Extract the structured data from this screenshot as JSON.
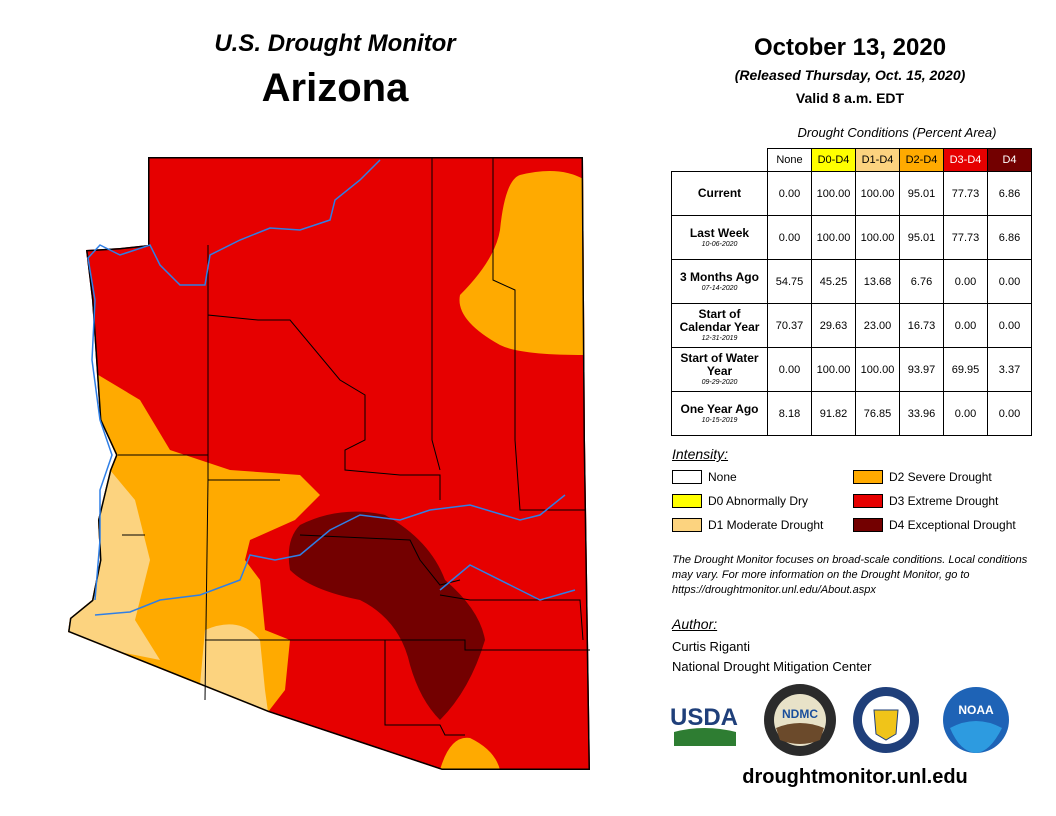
{
  "header": {
    "program": "U.S. Drought Monitor",
    "state": "Arizona",
    "date": "October 13, 2020",
    "released": "(Released Thursday, Oct. 15, 2020)",
    "valid": "Valid 8 a.m. EDT"
  },
  "table": {
    "caption": "Drought Conditions (Percent Area)",
    "columns": [
      {
        "label": "None",
        "color": "#ffffff",
        "text_color": "#000000"
      },
      {
        "label": "D0-D4",
        "color": "#ffff00",
        "text_color": "#000000"
      },
      {
        "label": "D1-D4",
        "color": "#fcd37f",
        "text_color": "#000000"
      },
      {
        "label": "D2-D4",
        "color": "#ffaa00",
        "text_color": "#000000"
      },
      {
        "label": "D3-D4",
        "color": "#e60000",
        "text_color": "#ffffff"
      },
      {
        "label": "D4",
        "color": "#730000",
        "text_color": "#ffffff"
      }
    ],
    "rows": [
      {
        "label": "Current",
        "values": [
          "0.00",
          "100.00",
          "100.00",
          "95.01",
          "77.73",
          "6.86"
        ]
      },
      {
        "label": "Last Week",
        "date": "10-06-2020",
        "values": [
          "0.00",
          "100.00",
          "100.00",
          "95.01",
          "77.73",
          "6.86"
        ]
      },
      {
        "label": "3 Months Ago",
        "date": "07-14-2020",
        "values": [
          "54.75",
          "45.25",
          "13.68",
          "6.76",
          "0.00",
          "0.00"
        ]
      },
      {
        "label": "Start of Calendar Year",
        "date": "12-31-2019",
        "values": [
          "70.37",
          "29.63",
          "23.00",
          "16.73",
          "0.00",
          "0.00"
        ]
      },
      {
        "label": "Start of Water Year",
        "date": "09-29-2020",
        "values": [
          "0.00",
          "100.00",
          "100.00",
          "93.97",
          "69.95",
          "3.37"
        ]
      },
      {
        "label": "One Year Ago",
        "date": "10-15-2019",
        "values": [
          "8.18",
          "91.82",
          "76.85",
          "33.96",
          "0.00",
          "0.00"
        ]
      }
    ]
  },
  "legend": {
    "title": "Intensity:",
    "items": [
      {
        "label": "None",
        "color": "#ffffff"
      },
      {
        "label": "D0 Abnormally Dry",
        "color": "#ffff00"
      },
      {
        "label": "D1 Moderate Drought",
        "color": "#fcd37f"
      },
      {
        "label": "D2 Severe Drought",
        "color": "#ffaa00"
      },
      {
        "label": "D3 Extreme Drought",
        "color": "#e60000"
      },
      {
        "label": "D4 Exceptional Drought",
        "color": "#730000"
      }
    ]
  },
  "note": "The Drought Monitor focuses on broad-scale conditions. Local conditions may vary. For more information on the Drought Monitor, go to https://droughtmonitor.unl.edu/About.aspx",
  "author": {
    "title": "Author:",
    "name": "Curtis Riganti",
    "org": "National Drought Mitigation Center"
  },
  "logos": [
    "USDA",
    "NDMC",
    "NOAA"
  ],
  "url": "droughtmonitor.unl.edu"
}
